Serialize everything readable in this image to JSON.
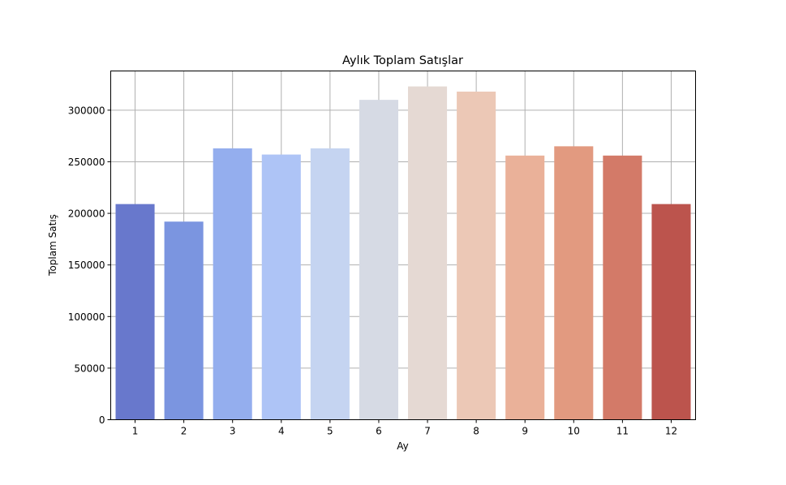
{
  "chart_data": {
    "type": "bar",
    "title": "Aylık Toplam Satışlar",
    "xlabel": "Ay",
    "ylabel": "Toplam Satış",
    "categories": [
      "1",
      "2",
      "3",
      "4",
      "5",
      "6",
      "7",
      "8",
      "9",
      "10",
      "11",
      "12"
    ],
    "values": [
      209000,
      192000,
      263000,
      257000,
      263000,
      310000,
      323000,
      318000,
      256000,
      265000,
      256000,
      209000
    ],
    "ylim": [
      0,
      338000
    ],
    "yticks": [
      0,
      50000,
      100000,
      150000,
      200000,
      250000,
      300000
    ],
    "ytick_labels": [
      "0",
      "50000",
      "100000",
      "150000",
      "200000",
      "250000",
      "300000"
    ],
    "grid": true,
    "colors": [
      "#6878cc",
      "#7b95e0",
      "#94aeee",
      "#aec4f6",
      "#c5d4f1",
      "#d6dae4",
      "#e5d9d3",
      "#ecc8b6",
      "#eab199",
      "#e29a80",
      "#d37a68",
      "#bc544d"
    ]
  }
}
